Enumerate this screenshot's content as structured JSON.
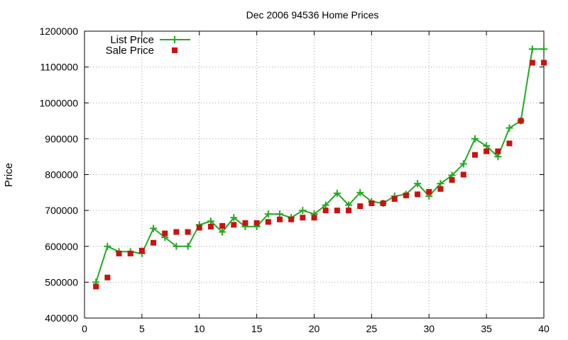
{
  "chart_data": {
    "type": "line",
    "title": "Dec 2006 94536 Home Prices",
    "xlabel": "",
    "ylabel": "Price",
    "xlim": [
      0,
      40
    ],
    "ylim": [
      400000,
      1200000
    ],
    "xticks": [
      0,
      5,
      10,
      15,
      20,
      25,
      30,
      35,
      40
    ],
    "yticks": [
      400000,
      500000,
      600000,
      700000,
      800000,
      900000,
      1000000,
      1100000,
      1200000
    ],
    "grid": true,
    "legend_position": "top-left",
    "x": [
      1,
      2,
      3,
      4,
      5,
      6,
      7,
      8,
      9,
      10,
      11,
      12,
      13,
      14,
      15,
      16,
      17,
      18,
      19,
      20,
      21,
      22,
      23,
      24,
      25,
      26,
      27,
      28,
      29,
      30,
      31,
      32,
      33,
      34,
      35,
      36,
      37,
      38,
      39,
      40
    ],
    "series": [
      {
        "name": "List Price",
        "style": "linespoints",
        "color": "#22aa22",
        "marker": "plus",
        "values": [
          500000,
          600000,
          585000,
          585000,
          580000,
          650000,
          625000,
          600000,
          600000,
          660000,
          670000,
          640000,
          680000,
          655000,
          655000,
          690000,
          690000,
          680000,
          700000,
          690000,
          715000,
          748000,
          715000,
          750000,
          725000,
          720000,
          740000,
          745000,
          775000,
          740000,
          775000,
          798000,
          830000,
          900000,
          880000,
          850000,
          930000,
          950000,
          1150000,
          1150000
        ]
      },
      {
        "name": "Sale Price",
        "style": "points",
        "color": "#cc1111",
        "marker": "square",
        "values": [
          488000,
          513000,
          580000,
          580000,
          588000,
          610000,
          636000,
          640000,
          640000,
          652000,
          655000,
          657000,
          660000,
          665000,
          665000,
          668000,
          675000,
          675000,
          680000,
          680000,
          700000,
          700000,
          700000,
          712000,
          720000,
          720000,
          732000,
          742000,
          745000,
          752000,
          760000,
          785000,
          800000,
          855000,
          865000,
          865000,
          887000,
          950000,
          1112000,
          1112000
        ]
      }
    ]
  }
}
